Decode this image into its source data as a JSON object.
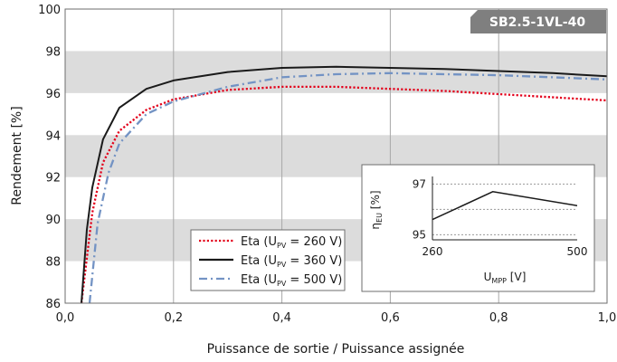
{
  "chart_data": [
    {
      "type": "line",
      "title": "",
      "badge": "SB2.5-1VL-40",
      "xlabel": "Puissance de sortie / Puissance assignée",
      "ylabel": "Rendement [%]",
      "xlim": [
        0,
        1.0
      ],
      "ylim": [
        86,
        100
      ],
      "xticks": [
        "0,0",
        "0,2",
        "0,4",
        "0,6",
        "0,8",
        "1,0"
      ],
      "xtick_values": [
        0,
        0.2,
        0.4,
        0.6,
        0.8,
        1.0
      ],
      "yticks": [
        "86",
        "88",
        "90",
        "92",
        "94",
        "96",
        "98",
        "100"
      ],
      "ytick_values": [
        86,
        88,
        90,
        92,
        94,
        96,
        98,
        100
      ],
      "grid": true,
      "banded_background": true,
      "legend_position": "bottom-center",
      "colors": {
        "band": "#dcdcdc",
        "badge": "#7f7f7f",
        "grid": "#a8a8a8"
      },
      "series": [
        {
          "name_prefix": "Eta (U",
          "name_sub": "PV",
          "name_suffix": " = 260 V)",
          "color": "#e3001b",
          "style": "dotted",
          "x": [
            0.03,
            0.05,
            0.07,
            0.1,
            0.15,
            0.2,
            0.3,
            0.4,
            0.5,
            0.6,
            0.7,
            0.8,
            0.9,
            1.0
          ],
          "y": [
            86.0,
            90.3,
            92.7,
            94.2,
            95.2,
            95.7,
            96.15,
            96.3,
            96.3,
            96.2,
            96.1,
            95.95,
            95.8,
            95.65
          ]
        },
        {
          "name_prefix": "Eta (U",
          "name_sub": "PV",
          "name_suffix": " = 360 V)",
          "color": "#1a1a1a",
          "style": "solid",
          "x": [
            0.03,
            0.04,
            0.05,
            0.07,
            0.1,
            0.15,
            0.2,
            0.3,
            0.4,
            0.5,
            0.6,
            0.7,
            0.8,
            0.9,
            1.0
          ],
          "y": [
            86.0,
            89.5,
            91.5,
            93.8,
            95.3,
            96.2,
            96.6,
            97.0,
            97.2,
            97.25,
            97.2,
            97.15,
            97.05,
            96.95,
            96.8
          ]
        },
        {
          "name_prefix": "Eta (U",
          "name_sub": "PV",
          "name_suffix": " = 500 V)",
          "color": "#7393c4",
          "style": "dashdot",
          "x": [
            0.045,
            0.06,
            0.08,
            0.1,
            0.15,
            0.2,
            0.3,
            0.4,
            0.5,
            0.6,
            0.7,
            0.8,
            0.9,
            1.0
          ],
          "y": [
            86.0,
            89.8,
            92.2,
            93.6,
            95.0,
            95.6,
            96.3,
            96.75,
            96.9,
            96.95,
            96.9,
            96.85,
            96.75,
            96.65
          ]
        }
      ]
    },
    {
      "type": "line",
      "xlabel_prefix": "U",
      "xlabel_sub": "MPP",
      "xlabel_suffix": " [V]",
      "ylabel_prefix": "η",
      "ylabel_sub": "EU",
      "ylabel_suffix": " [%]",
      "xlim": [
        260,
        500
      ],
      "ylim": [
        94.8,
        97.3
      ],
      "xticks": [
        "260",
        "500"
      ],
      "xtick_values": [
        260,
        500
      ],
      "yticks": [
        "95",
        "97"
      ],
      "ytick_values": [
        95,
        97
      ],
      "grid_y_values": [
        95,
        96,
        97
      ],
      "legend_position": "none",
      "series": [
        {
          "color": "#1a1a1a",
          "x": [
            260,
            360,
            500
          ],
          "y": [
            95.6,
            96.7,
            96.15
          ]
        }
      ]
    }
  ]
}
